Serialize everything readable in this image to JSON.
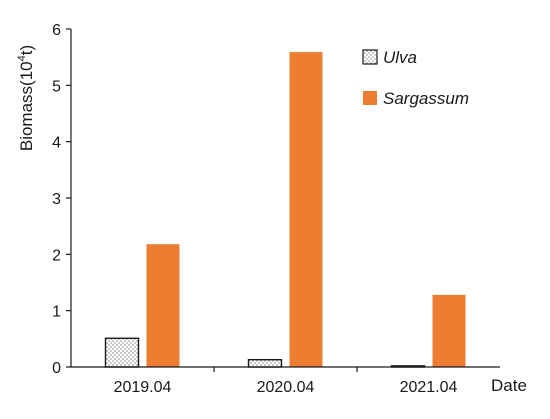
{
  "chart_data": {
    "type": "bar",
    "categories": [
      "2019.04",
      "2020.04",
      "2021.04"
    ],
    "series": [
      {
        "name": "Ulva",
        "values": [
          0.51,
          0.13,
          0.02
        ],
        "color": "#ffffff",
        "pattern": "crosshatch-dots"
      },
      {
        "name": "Sargassum",
        "values": [
          2.18,
          5.59,
          1.28
        ],
        "color": "#ed7d31"
      }
    ],
    "ylabel_base": "Biomass(10",
    "ylabel_sup": "4",
    "ylabel_tail": "t)",
    "xlabel": "Date",
    "ylim": [
      0,
      6
    ],
    "yticks": [
      "0",
      "1",
      "2",
      "3",
      "4",
      "5",
      "6"
    ],
    "grid": false,
    "legend_position": "top-right"
  }
}
